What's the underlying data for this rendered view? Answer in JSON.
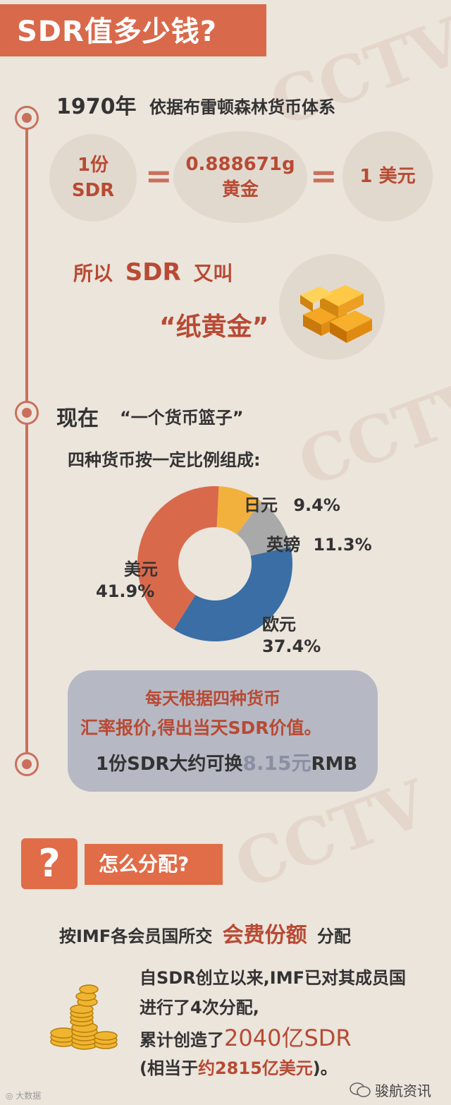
{
  "header": {
    "title": "SDR值多少钱?"
  },
  "section1": {
    "year": "1970年",
    "desc": "依据布雷顿森林货币体系",
    "bubble1_line1": "1份",
    "bubble1_line2": "SDR",
    "equals": "=",
    "bubble2_line1": "0.888671g",
    "bubble2_line2": "黄金",
    "bubble3": "1 美元",
    "so_prefix": "所以",
    "so_sdr": "SDR",
    "so_suffix": "又叫",
    "nickname": "“纸黄金”"
  },
  "section2": {
    "title": "现在",
    "quote": "“一个货币篮子”",
    "subtitle": "四种货币按一定比例组成:"
  },
  "chart_data": {
    "type": "pie",
    "categories": [
      "日元",
      "英镑",
      "欧元",
      "美元"
    ],
    "values": [
      9.4,
      11.3,
      37.4,
      41.9
    ],
    "value_labels": [
      "9.4%",
      "11.3%",
      "37.4%",
      "41.9%"
    ],
    "colors": [
      "#f2b13c",
      "#a9a9a9",
      "#3a6ea5",
      "#d9694b"
    ],
    "donut": true
  },
  "info_box": {
    "line1": "每天根据四种货币",
    "line2": "汇率报价,得出当天SDR价值。",
    "line3_prefix": "1份SDR大约可换",
    "line3_value": "8.15元",
    "line3_suffix": "RMB"
  },
  "section3": {
    "q_mark": "?",
    "title": "怎么分配?",
    "line_prefix": "按IMF各会员国所交",
    "line_highlight": "会费份额",
    "line_suffix": "分配",
    "para1": "自SDR创立以来,IMF已对其成员国",
    "para2": "进行了4次分配,",
    "para3_prefix": "累计创造了",
    "para3_value": "2040亿SDR",
    "para4_prefix": "(相当于",
    "para4_value": "约2815亿美元",
    "para4_suffix": ")。"
  },
  "footer": {
    "left_credit": "大数据",
    "right_credit": "骏航资讯"
  },
  "watermarks": [
    "CCTV",
    "CCTV",
    "CCTV"
  ]
}
